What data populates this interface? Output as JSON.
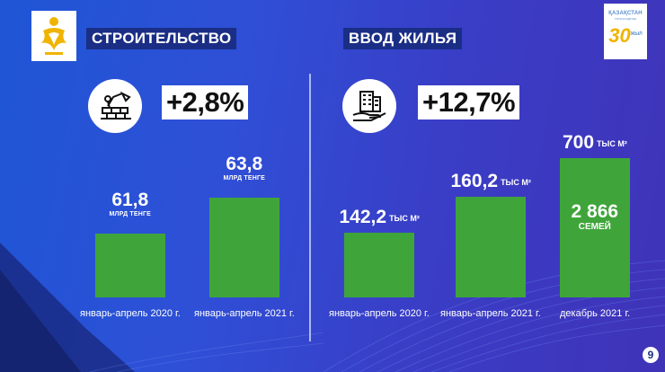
{
  "construction": {
    "title": "СТРОИТЕЛЬСТВО",
    "growth": "+2,8%",
    "icon": "construction-icon",
    "chart_data": {
      "type": "bar",
      "categories": [
        "январь-апрель 2020 г.",
        "январь-апрель 2021 г."
      ],
      "values": [
        61.8,
        63.8
      ],
      "value_labels": [
        "61,8",
        "63,8"
      ],
      "unit": "МЛРД ТЕНГЕ"
    }
  },
  "housing": {
    "title": "ВВОД ЖИЛЬЯ",
    "growth": "+12,7%",
    "icon": "buildings-hand-icon",
    "chart_data": {
      "type": "bar",
      "categories": [
        "январь-апрель 2020 г.",
        "январь-апрель 2021 г.",
        "декабрь 2021 г."
      ],
      "values": [
        142.2,
        160.2,
        700
      ],
      "value_labels": [
        "142,2",
        "160,2",
        "700"
      ],
      "unit": "ТЫС М²",
      "inner_label": {
        "value": "2 866",
        "text": "СЕМЕЙ"
      }
    }
  },
  "logo_right": {
    "line1": "ҚАЗАҚСТАН",
    "line2": "ТӘУЕЛСІЗДІГІНЕ",
    "number": "30",
    "suffix": "ЖЫЛ"
  },
  "logo_left": {
    "icon": "snow-leopard-emblem-icon"
  },
  "page_number": "9",
  "colors": {
    "bar": "#3fa53a",
    "title_bg": "#1b2e86",
    "background": "#2a4fd4",
    "accent": "#f0b400"
  }
}
